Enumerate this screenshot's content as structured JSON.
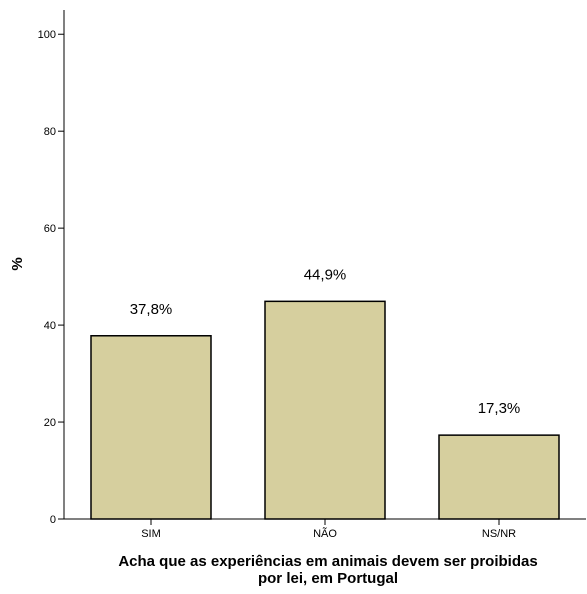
{
  "chart_data": {
    "type": "bar",
    "categories": [
      "SIM",
      "NÃO",
      "NS/NR"
    ],
    "values": [
      37.8,
      44.9,
      17.3
    ],
    "data_labels": [
      "37,8%",
      "44,9%",
      "17,3%"
    ],
    "title": "",
    "xlabel_lines": [
      "Acha que as experiências em animais devem ser proibidas",
      "por lei, em Portugal"
    ],
    "ylabel": "%",
    "ylim": [
      0,
      105
    ],
    "yticks": [
      0,
      20,
      40,
      60,
      80,
      100
    ],
    "grid": false,
    "legend": "none",
    "colors": {
      "bar_fill": "#d6cf9e",
      "bar_stroke": "#000000",
      "axis": "#000000"
    }
  }
}
